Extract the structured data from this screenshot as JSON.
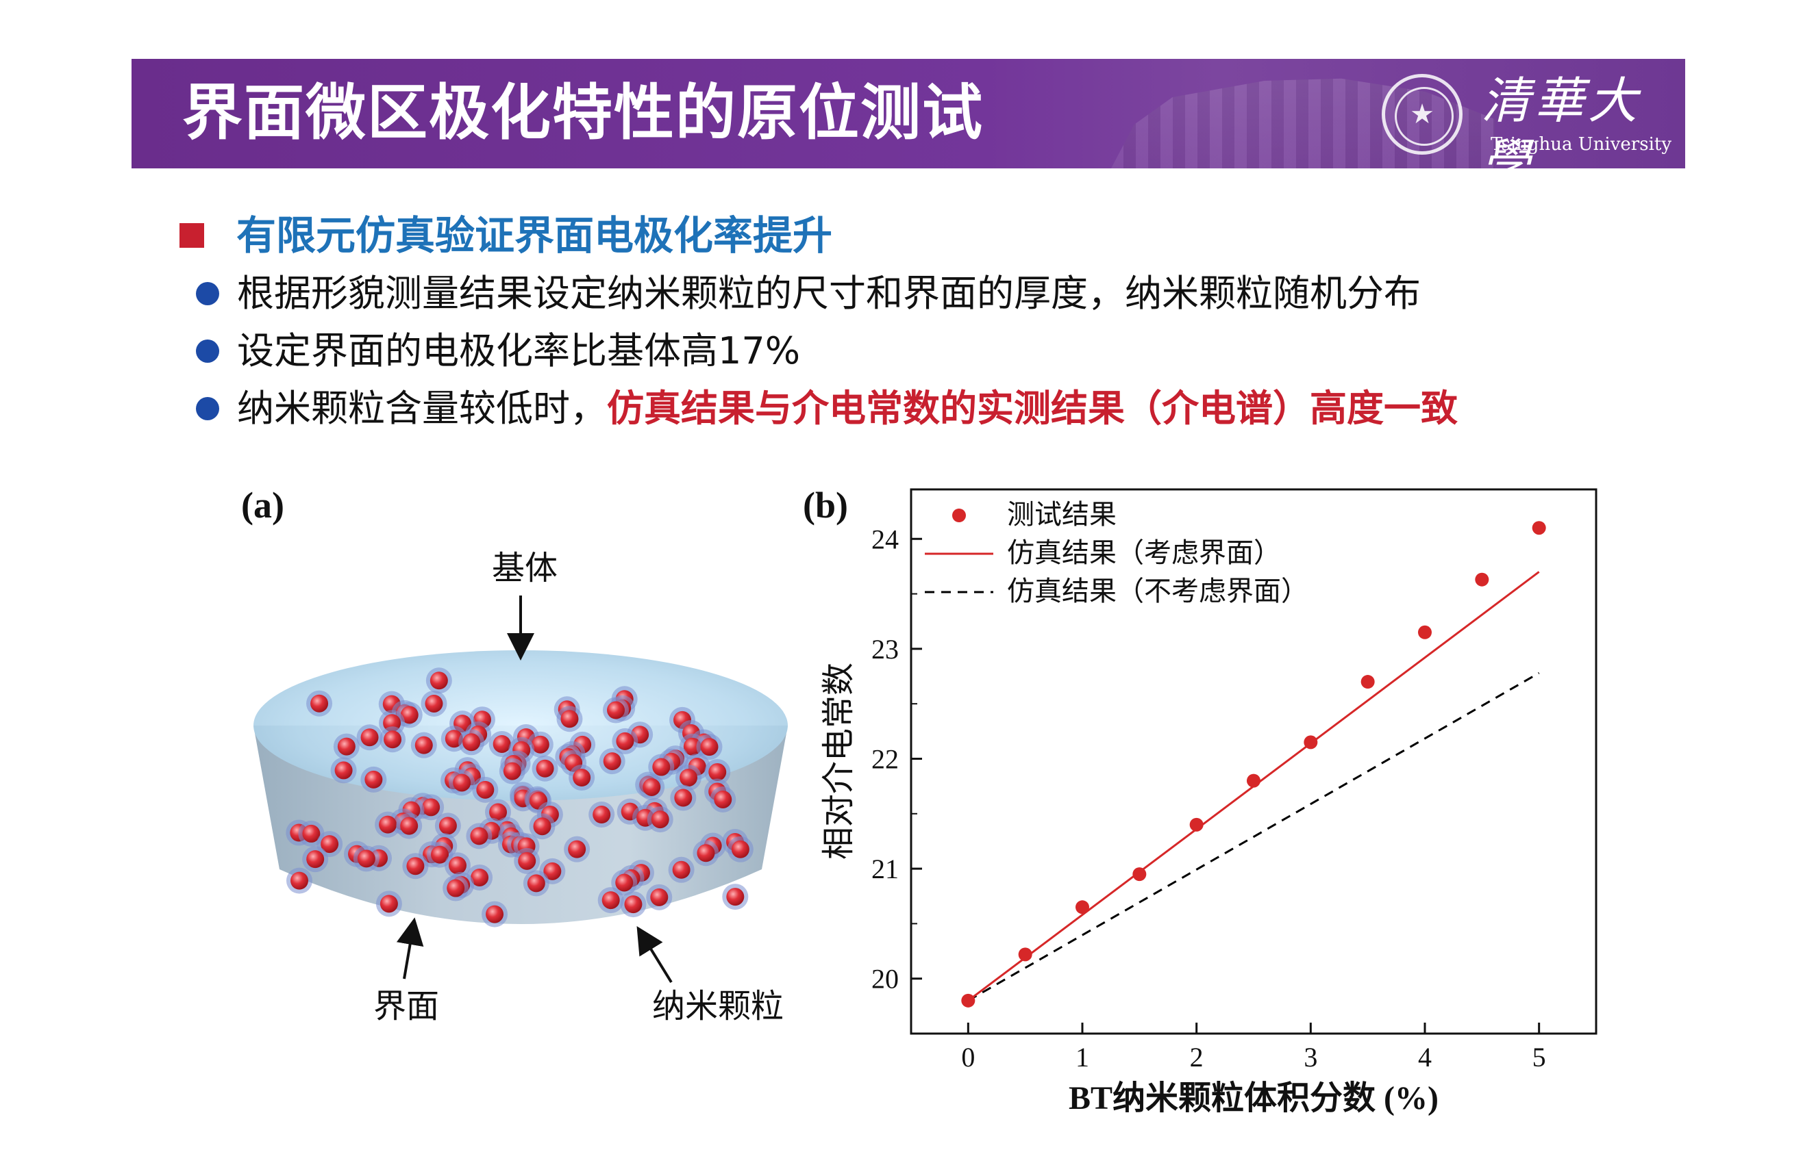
{
  "header": {
    "title": "界面微区极化特性的原位测试",
    "university_cn": "清華大學",
    "university_en": "Tsinghua University"
  },
  "section": {
    "heading": "有限元仿真验证界面电极化率提升",
    "bullets": [
      {
        "text": "根据形貌测量结果设定纳米颗粒的尺寸和界面的厚度，纳米颗粒随机分布"
      },
      {
        "text": "设定界面的电极化率比基体高17%"
      },
      {
        "text": "纳米颗粒含量较低时，",
        "emphasis": "仿真结果与介电常数的实测结果（介电谱）高度一致"
      }
    ]
  },
  "colors": {
    "banner": "#6a2d8c",
    "heading": "#1e72b8",
    "emphasis": "#c8202f",
    "bullet_dot": "#1c4aa6",
    "particle": "#e0303a",
    "series_measured": "#d62728",
    "series_sim_interface": "#d62728",
    "series_sim_no_interface": "#000000"
  },
  "diagram": {
    "panel_label": "(a)",
    "labels": {
      "matrix": "基体",
      "interface": "界面",
      "nanoparticle": "纳米颗粒"
    }
  },
  "chart_data": {
    "panel_label": "(b)",
    "type": "scatter",
    "xlabel": "BT纳米颗粒体积分数 (%)",
    "ylabel": "相对介电常数",
    "xlim": [
      -0.5,
      5.5
    ],
    "ylim": [
      19.5,
      24.45
    ],
    "xticks": [
      0,
      1,
      2,
      3,
      4,
      5
    ],
    "yticks": [
      20,
      21,
      22,
      23,
      24
    ],
    "grid": false,
    "legend_position": "top-left",
    "series": [
      {
        "name": "测试结果",
        "type": "scatter",
        "x": [
          0,
          0.5,
          1,
          1.5,
          2,
          2.5,
          3,
          3.5,
          4,
          4.5,
          5
        ],
        "y": [
          19.8,
          20.22,
          20.65,
          20.95,
          21.4,
          21.8,
          22.15,
          22.7,
          23.15,
          23.63,
          24.1
        ]
      },
      {
        "name": "仿真结果（考虑界面）",
        "type": "line",
        "style": "solid",
        "x": [
          0,
          5
        ],
        "y": [
          19.8,
          23.7
        ]
      },
      {
        "name": "仿真结果（不考虑界面）",
        "type": "line",
        "style": "dashed",
        "x": [
          0,
          5
        ],
        "y": [
          19.8,
          22.78
        ]
      }
    ]
  }
}
